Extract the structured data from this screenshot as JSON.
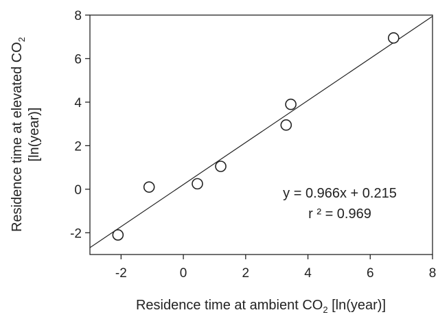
{
  "chart_data": {
    "type": "scatter",
    "xlabel": "Residence time at ambient CO",
    "xlabel_sub": "2",
    "xlabel_suffix": " [ln(year)]",
    "ylabel_line1": "Residence time at elevated CO",
    "ylabel_sub": "2",
    "ylabel_line2": "[ln(year)]",
    "xlim": [
      -3,
      8
    ],
    "ylim": [
      -3,
      8
    ],
    "x_ticks": [
      -2,
      0,
      2,
      4,
      6,
      8
    ],
    "y_ticks": [
      -2,
      0,
      2,
      4,
      6,
      8
    ],
    "grid": false,
    "points": [
      {
        "x": -2.1,
        "y": -2.1
      },
      {
        "x": -1.1,
        "y": 0.1
      },
      {
        "x": 0.45,
        "y": 0.25
      },
      {
        "x": 1.2,
        "y": 1.05
      },
      {
        "x": 3.3,
        "y": 2.95
      },
      {
        "x": 3.45,
        "y": 3.9
      },
      {
        "x": 6.75,
        "y": 6.95
      }
    ],
    "fit": {
      "slope": 0.966,
      "intercept": 0.215
    },
    "equation": "y = 0.966x + 0.215",
    "r2_text": "r ² = 0.969"
  }
}
